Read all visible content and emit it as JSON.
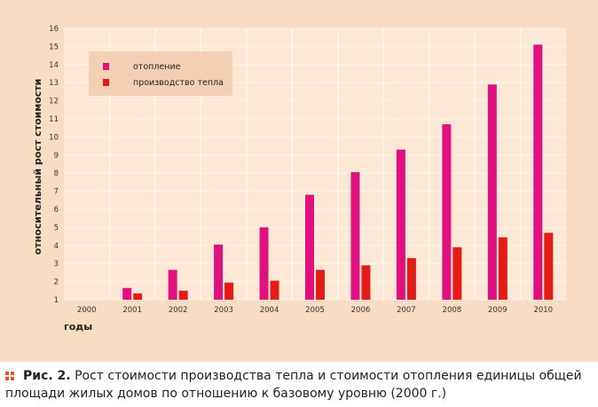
{
  "colors": {
    "panel": "#f9dcc4",
    "plot": "#fde8d6",
    "grid": "#ffffff",
    "heating": "#e0117f",
    "production": "#e41b17",
    "accent": "#e8572c"
  },
  "legend": {
    "heating_label": "отопление",
    "production_label": "производство тепла"
  },
  "caption": {
    "label": "Рис. 2.",
    "text": "Рост стоимости производства тепла и стоимости отопления единицы общей площади жилых домов по отношению к базовому уровню (2000 г.)"
  },
  "chart_data": {
    "type": "bar",
    "title": "",
    "xlabel": "годы",
    "ylabel": "относительный рост стоимости",
    "categories": [
      "2000",
      "2001",
      "2002",
      "2003",
      "2004",
      "2005",
      "2006",
      "2007",
      "2008",
      "2009",
      "2010"
    ],
    "ylim": [
      1,
      16
    ],
    "yticks": [
      1,
      2,
      3,
      4,
      5,
      6,
      7,
      8,
      9,
      10,
      11,
      12,
      13,
      14,
      15,
      16
    ],
    "grid": true,
    "legend_position": "top-left",
    "series": [
      {
        "name": "отопление",
        "color": "#e0117f",
        "values": [
          1,
          1.65,
          2.65,
          4.05,
          5.0,
          6.8,
          8.05,
          9.3,
          10.7,
          12.9,
          15.1
        ]
      },
      {
        "name": "производство тепла",
        "color": "#e41b17",
        "values": [
          1,
          1.35,
          1.5,
          1.95,
          2.05,
          2.65,
          2.9,
          3.3,
          3.9,
          4.45,
          4.7
        ]
      }
    ]
  }
}
